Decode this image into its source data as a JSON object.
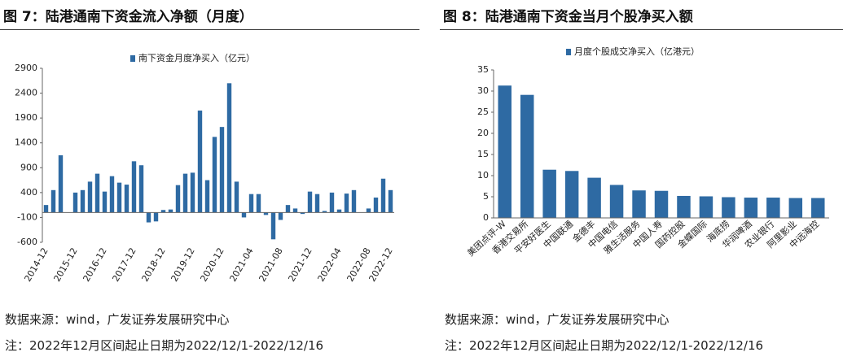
{
  "figures": [
    {
      "title": "图 7：陆港通南下资金流入净额（月度）",
      "source": "数据来源：wind，广发证券发展研究中心",
      "note": "注：2022年12月区间起止日期为2022/12/1-2022/12/16"
    },
    {
      "title": "图 8：陆港通南下资金当月个股净买入额",
      "source": "数据来源：wind，广发证券发展研究中心",
      "note": "注：2022年12月区间起止日期为2022/12/1-2022/12/16"
    }
  ],
  "chart_data": [
    {
      "type": "bar",
      "categories": [
        "2014-12",
        null,
        null,
        null,
        "2015-12",
        null,
        null,
        null,
        "2016-12",
        null,
        null,
        null,
        "2017-12",
        null,
        null,
        null,
        "2018-12",
        null,
        null,
        null,
        "2019-12",
        null,
        null,
        null,
        "2020-12",
        null,
        null,
        null,
        "2021-04",
        null,
        null,
        null,
        "2021-08",
        null,
        null,
        null,
        "2021-12",
        null,
        null,
        null,
        "2022-04",
        null,
        null,
        null,
        "2022-08",
        null,
        null,
        "2022-12"
      ],
      "series": [
        {
          "name": "南下资金月度净买入（亿元）",
          "color": "#2e6aa3",
          "values": [
            150,
            450,
            1150,
            0,
            400,
            450,
            620,
            780,
            420,
            730,
            600,
            560,
            1030,
            950,
            -200,
            -180,
            50,
            60,
            550,
            780,
            800,
            2050,
            650,
            1520,
            1720,
            2600,
            620,
            -100,
            370,
            370,
            -50,
            -540,
            -150,
            150,
            80,
            -30,
            420,
            370,
            30,
            400,
            60,
            380,
            450,
            0,
            80,
            300,
            680,
            450
          ]
        }
      ],
      "ylim": [
        -600,
        2900
      ],
      "yticks": [
        -600,
        -100,
        400,
        900,
        1400,
        1900,
        2400,
        2900
      ]
    },
    {
      "type": "bar",
      "categories": [
        "美团点评-W",
        "香港交易所",
        "平安好医生",
        "中国联通",
        "金德丰",
        "中国电信",
        "雅生活服务",
        "中国人寿",
        "国药控股",
        "金蝶国际",
        "海底捞",
        "华润啤酒",
        "农业银行",
        "阿里影业",
        "中远海控"
      ],
      "series": [
        {
          "name": "月度个股成交净买入（亿港元）",
          "color": "#2e6aa3",
          "values": [
            31.3,
            29.1,
            11.4,
            11.1,
            9.5,
            7.8,
            6.5,
            6.4,
            5.2,
            5.1,
            4.9,
            4.8,
            4.8,
            4.7,
            4.7
          ]
        }
      ],
      "ylim": [
        0,
        35
      ],
      "yticks": [
        0,
        5,
        10,
        15,
        20,
        25,
        30,
        35
      ]
    }
  ]
}
